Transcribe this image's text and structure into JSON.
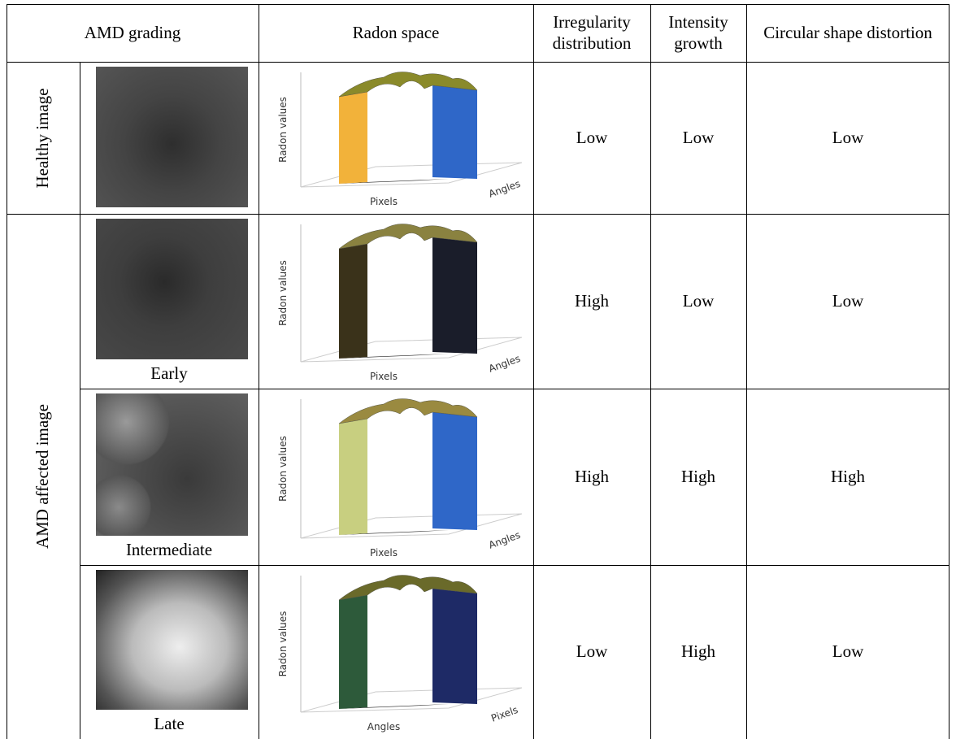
{
  "header": [
    "AMD grading",
    "Radon space",
    "Irregularity distribution",
    "Intensity growth",
    "Circular shape distortion"
  ],
  "groups": [
    {
      "label": "Healthy image"
    },
    {
      "label": "AMD affected image"
    }
  ],
  "rows": [
    {
      "ratings": [
        "Low",
        "Low",
        "Low"
      ],
      "plot": {
        "y_label": "Radon values",
        "x_label_left": "Pixels",
        "x_label_right": "Angles"
      }
    },
    {
      "stage": "Early",
      "ratings": [
        "High",
        "Low",
        "Low"
      ],
      "plot": {
        "y_label": "Radon values",
        "x_label_left": "Pixels",
        "x_label_right": "Angles"
      }
    },
    {
      "stage": "Intermediate",
      "ratings": [
        "High",
        "High",
        "High"
      ],
      "plot": {
        "y_label": "Radon values",
        "x_label_left": "Pixels",
        "x_label_right": "Angles"
      }
    },
    {
      "stage": "Late",
      "ratings": [
        "Low",
        "High",
        "Low"
      ],
      "plot": {
        "y_label": "Radon values",
        "x_label_left": "Angles",
        "x_label_right": "Pixels"
      }
    }
  ]
}
